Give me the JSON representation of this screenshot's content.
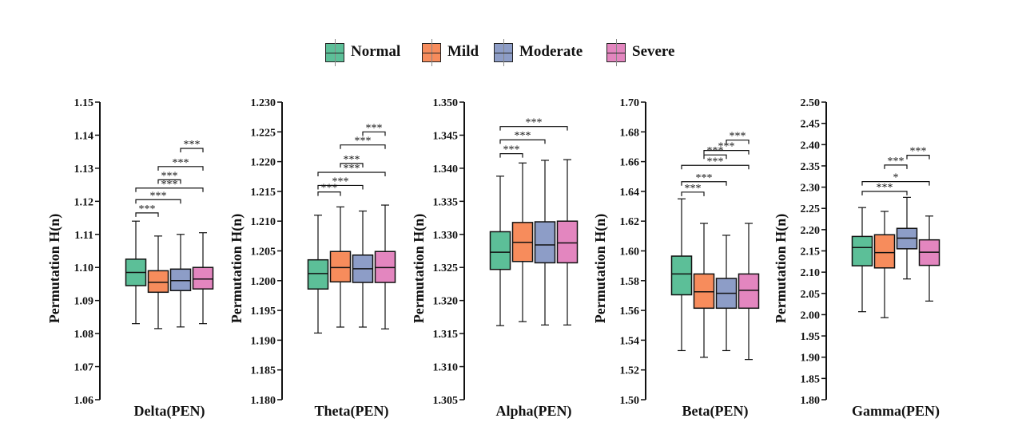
{
  "legend": {
    "items": [
      {
        "label": "Normal",
        "color": "#5cbf98"
      },
      {
        "label": "Mild",
        "color": "#f78c5c"
      },
      {
        "label": "Moderate",
        "color": "#8d9dc7"
      },
      {
        "label": "Severe",
        "color": "#e386bf"
      }
    ]
  },
  "chart_data": [
    {
      "type": "box",
      "title": "Delta(PEN)",
      "xlabel": "Delta(PEN)",
      "ylabel": "Permutation H(n)",
      "ylim": [
        1.06,
        1.15
      ],
      "yticks": [
        "1.06",
        "1.07",
        "1.08",
        "1.09",
        "1.10",
        "1.11",
        "1.12",
        "1.13",
        "1.14",
        "1.15"
      ],
      "series": [
        {
          "name": "Normal",
          "whisker_low": 1.083,
          "q1": 1.0945,
          "median": 1.0985,
          "q3": 1.1025,
          "whisker_high": 1.114
        },
        {
          "name": "Mild",
          "whisker_low": 1.0815,
          "q1": 1.0925,
          "median": 1.0955,
          "q3": 1.099,
          "whisker_high": 1.1095
        },
        {
          "name": "Moderate",
          "whisker_low": 1.082,
          "q1": 1.093,
          "median": 1.096,
          "q3": 1.0995,
          "whisker_high": 1.11
        },
        {
          "name": "Severe",
          "whisker_low": 1.083,
          "q1": 1.0935,
          "median": 1.0965,
          "q3": 1.1,
          "whisker_high": 1.1105
        }
      ],
      "significance": [
        {
          "from": 0,
          "to": 1,
          "label": "***",
          "y": 1.1165
        },
        {
          "from": 0,
          "to": 2,
          "label": "***",
          "y": 1.1205
        },
        {
          "from": 0,
          "to": 3,
          "label": "***",
          "y": 1.124
        },
        {
          "from": 1,
          "to": 2,
          "label": "***",
          "y": 1.1265
        },
        {
          "from": 1,
          "to": 3,
          "label": "***",
          "y": 1.1305
        },
        {
          "from": 2,
          "to": 3,
          "label": "***",
          "y": 1.136
        }
      ]
    },
    {
      "type": "box",
      "title": "Theta(PEN)",
      "xlabel": "Theta(PEN)",
      "ylabel": "Permutation H(n)",
      "ylim": [
        1.18,
        1.23
      ],
      "yticks": [
        "1.180",
        "1.185",
        "1.190",
        "1.195",
        "1.200",
        "1.205",
        "1.210",
        "1.215",
        "1.220",
        "1.225",
        "1.230"
      ],
      "series": [
        {
          "name": "Normal",
          "whisker_low": 1.1912,
          "q1": 1.1986,
          "median": 1.2012,
          "q3": 1.2035,
          "whisker_high": 1.211
        },
        {
          "name": "Mild",
          "whisker_low": 1.1922,
          "q1": 1.1998,
          "median": 1.2022,
          "q3": 1.2049,
          "whisker_high": 1.2124
        },
        {
          "name": "Moderate",
          "whisker_low": 1.1922,
          "q1": 1.1997,
          "median": 1.202,
          "q3": 1.2043,
          "whisker_high": 1.2117
        },
        {
          "name": "Severe",
          "whisker_low": 1.1919,
          "q1": 1.1997,
          "median": 1.2022,
          "q3": 1.2049,
          "whisker_high": 1.2127
        }
      ],
      "significance": [
        {
          "from": 0,
          "to": 1,
          "label": "***",
          "y": 1.2149
        },
        {
          "from": 0,
          "to": 2,
          "label": "***",
          "y": 1.216
        },
        {
          "from": 0,
          "to": 3,
          "label": "***",
          "y": 1.2182
        },
        {
          "from": 1,
          "to": 2,
          "label": "***",
          "y": 1.2197
        },
        {
          "from": 1,
          "to": 3,
          "label": "***",
          "y": 1.2228
        },
        {
          "from": 2,
          "to": 3,
          "label": "***",
          "y": 1.225
        }
      ]
    },
    {
      "type": "box",
      "title": "Alpha(PEN)",
      "xlabel": "Alpha(PEN)",
      "ylabel": "Permutation H(n)",
      "ylim": [
        1.305,
        1.35
      ],
      "yticks": [
        "1.305",
        "1.310",
        "1.315",
        "1.320",
        "1.325",
        "1.330",
        "1.335",
        "1.340",
        "1.345",
        "1.350"
      ],
      "series": [
        {
          "name": "Normal",
          "whisker_low": 1.3162,
          "q1": 1.3247,
          "median": 1.3273,
          "q3": 1.3304,
          "whisker_high": 1.3388
        },
        {
          "name": "Mild",
          "whisker_low": 1.3168,
          "q1": 1.3259,
          "median": 1.3288,
          "q3": 1.3318,
          "whisker_high": 1.3408
        },
        {
          "name": "Moderate",
          "whisker_low": 1.3163,
          "q1": 1.3257,
          "median": 1.3284,
          "q3": 1.3319,
          "whisker_high": 1.3412
        },
        {
          "name": "Severe",
          "whisker_low": 1.3163,
          "q1": 1.3257,
          "median": 1.3287,
          "q3": 1.332,
          "whisker_high": 1.3413
        }
      ],
      "significance": [
        {
          "from": 0,
          "to": 1,
          "label": "***",
          "y": 1.3422
        },
        {
          "from": 0,
          "to": 2,
          "label": "***",
          "y": 1.3443
        },
        {
          "from": 0,
          "to": 3,
          "label": "***",
          "y": 1.3463
        }
      ]
    },
    {
      "type": "box",
      "title": "Beta(PEN)",
      "xlabel": "Beta(PEN)",
      "ylabel": "Permutation H(n)",
      "ylim": [
        1.5,
        1.7
      ],
      "yticks": [
        "1.50",
        "1.52",
        "1.54",
        "1.56",
        "1.58",
        "1.60",
        "1.62",
        "1.64",
        "1.66",
        "1.68",
        "1.70"
      ],
      "series": [
        {
          "name": "Normal",
          "whisker_low": 1.533,
          "q1": 1.5705,
          "median": 1.5845,
          "q3": 1.5965,
          "whisker_high": 1.635
        },
        {
          "name": "Mild",
          "whisker_low": 1.5285,
          "q1": 1.5615,
          "median": 1.5725,
          "q3": 1.5845,
          "whisker_high": 1.6185
        },
        {
          "name": "Moderate",
          "whisker_low": 1.533,
          "q1": 1.5615,
          "median": 1.5715,
          "q3": 1.5815,
          "whisker_high": 1.6105
        },
        {
          "name": "Severe",
          "whisker_low": 1.527,
          "q1": 1.5615,
          "median": 1.5735,
          "q3": 1.5845,
          "whisker_high": 1.6185
        }
      ],
      "significance": [
        {
          "from": 0,
          "to": 1,
          "label": "***",
          "y": 1.6395
        },
        {
          "from": 0,
          "to": 2,
          "label": "***",
          "y": 1.6465
        },
        {
          "from": 0,
          "to": 3,
          "label": "***",
          "y": 1.6575
        },
        {
          "from": 1,
          "to": 2,
          "label": "***",
          "y": 1.6645
        },
        {
          "from": 1,
          "to": 3,
          "label": "***",
          "y": 1.6675
        },
        {
          "from": 2,
          "to": 3,
          "label": "***",
          "y": 1.6745
        }
      ]
    },
    {
      "type": "box",
      "title": "Gamma(PEN)",
      "xlabel": "Gamma(PEN)",
      "ylabel": "Permutation H(n)",
      "ylim": [
        1.8,
        2.5
      ],
      "yticks": [
        "1.80",
        "1.85",
        "1.90",
        "1.95",
        "2.00",
        "2.05",
        "2.10",
        "2.15",
        "2.20",
        "2.25",
        "2.30",
        "2.35",
        "2.40",
        "2.45",
        "2.50"
      ],
      "series": [
        {
          "name": "Normal",
          "whisker_low": 2.007,
          "q1": 2.115,
          "median": 2.158,
          "q3": 2.184,
          "whisker_high": 2.252
        },
        {
          "name": "Mild",
          "whisker_low": 1.993,
          "q1": 2.11,
          "median": 2.146,
          "q3": 2.188,
          "whisker_high": 2.243
        },
        {
          "name": "Moderate",
          "whisker_low": 2.084,
          "q1": 2.155,
          "median": 2.18,
          "q3": 2.203,
          "whisker_high": 2.276
        },
        {
          "name": "Severe",
          "whisker_low": 2.032,
          "q1": 2.116,
          "median": 2.147,
          "q3": 2.176,
          "whisker_high": 2.232
        }
      ],
      "significance": [
        {
          "from": 0,
          "to": 2,
          "label": "***",
          "y": 2.29
        },
        {
          "from": 0,
          "to": 3,
          "label": "*",
          "y": 2.313
        },
        {
          "from": 1,
          "to": 2,
          "label": "***",
          "y": 2.352
        },
        {
          "from": 2,
          "to": 3,
          "label": "***",
          "y": 2.375
        }
      ]
    }
  ]
}
